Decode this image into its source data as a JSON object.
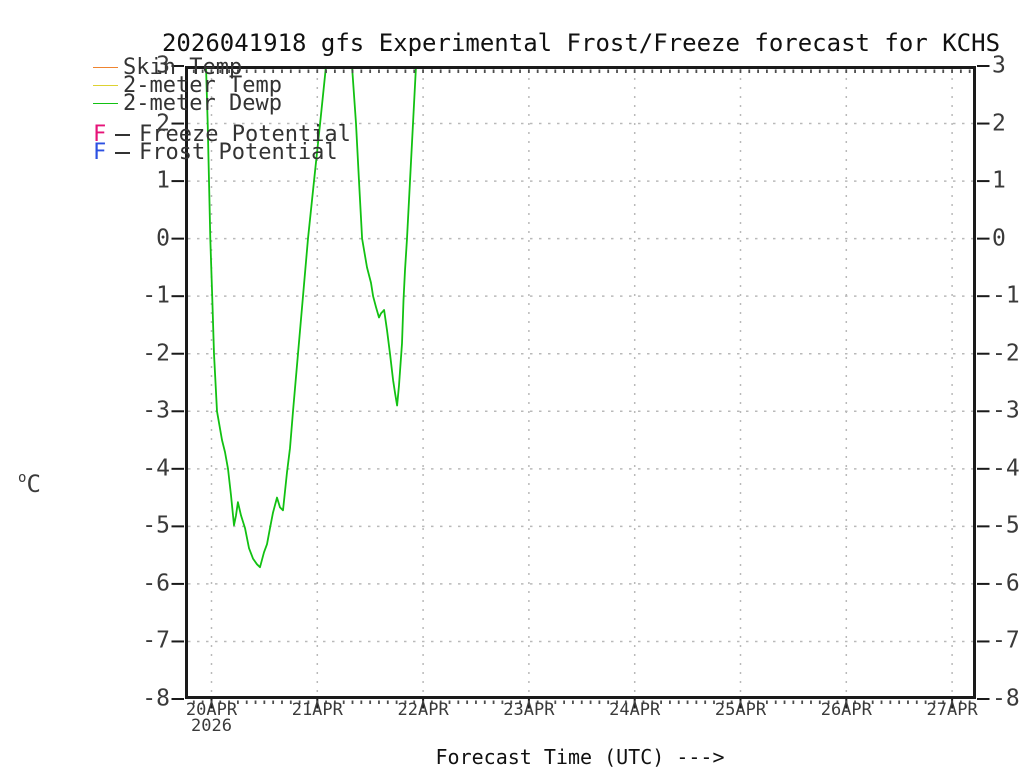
{
  "title": "2026041918 gfs Experimental Frost/Freeze forecast for KCHS",
  "colors": {
    "skin_temp": "#ef8430",
    "two_meter_temp": "#ddd231",
    "two_meter_dewp": "#12c112",
    "freeze_potential": "#e61378",
    "frost_potential": "#2c50e2",
    "grid": "#b9b9b9",
    "axis": "#1a1a1a",
    "text": "#333333"
  },
  "legend": {
    "entries": [
      {
        "kind": "line",
        "color": "#ef8430",
        "label": "Skin Temp"
      },
      {
        "kind": "line",
        "color": "#ddd231",
        "label": "2-meter Temp"
      },
      {
        "kind": "line",
        "color": "#12c112",
        "label": "2-meter Dewp"
      },
      {
        "kind": "letter",
        "symbol": "F",
        "color": "#e61378",
        "label": "Freeze Potential"
      },
      {
        "kind": "letter",
        "symbol": "F",
        "color": "#2c50e2",
        "label": "Frost Potential"
      }
    ]
  },
  "axes": {
    "x": {
      "label": "Forecast Time (UTC) --->",
      "ticks": [
        {
          "label": "20APR",
          "day": 20,
          "year": "2026"
        },
        {
          "label": "21APR",
          "day": 21
        },
        {
          "label": "22APR",
          "day": 22
        },
        {
          "label": "23APR",
          "day": 23
        },
        {
          "label": "24APR",
          "day": 24
        },
        {
          "label": "25APR",
          "day": 25
        },
        {
          "label": "26APR",
          "day": 26
        },
        {
          "label": "27APR",
          "day": 27
        }
      ]
    },
    "y": {
      "unit_sup": "o",
      "unit_main": "C",
      "ticks": [
        3,
        2,
        1,
        0,
        -1,
        -2,
        -3,
        -4,
        -5,
        -6,
        -7,
        -8
      ]
    }
  },
  "chart_data": {
    "type": "line",
    "title": "2026041918 gfs Experimental Frost/Freeze forecast for KCHS",
    "xlabel": "Forecast Time (UTC) --->",
    "ylabel": "oC",
    "ylim": [
      -8,
      3
    ],
    "xlim_april_days": [
      19.75,
      27.23
    ],
    "x_tick_labels": [
      "20APR",
      "21APR",
      "22APR",
      "23APR",
      "24APR",
      "25APR",
      "26APR",
      "27APR"
    ],
    "x_year": "2026",
    "grid": true,
    "legend_position": "top-left",
    "series": [
      {
        "name": "Skin Temp",
        "color": "#ef8430",
        "visible_in_plot": false,
        "segments_day_value": []
      },
      {
        "name": "2-meter Temp",
        "color": "#ddd231",
        "visible_in_plot": false,
        "segments_day_value": []
      },
      {
        "name": "2-meter Dewp",
        "color": "#12c112",
        "visible_in_plot": true,
        "unit": "degC",
        "segments_day_value": [
          [
            [
              19.948,
              3.0
            ],
            [
              19.964,
              2.0
            ],
            [
              19.976,
              1.0
            ],
            [
              19.989,
              0.0
            ],
            [
              20.008,
              -1.05
            ],
            [
              20.024,
              -2.0
            ],
            [
              20.052,
              -3.0
            ],
            [
              20.099,
              -3.5
            ],
            [
              20.128,
              -3.71
            ],
            [
              20.156,
              -4.0
            ],
            [
              20.184,
              -4.46
            ],
            [
              20.213,
              -4.98
            ],
            [
              20.232,
              -4.81
            ],
            [
              20.25,
              -4.58
            ],
            [
              20.279,
              -4.81
            ],
            [
              20.317,
              -5.03
            ],
            [
              20.354,
              -5.38
            ],
            [
              20.392,
              -5.56
            ],
            [
              20.43,
              -5.66
            ],
            [
              20.458,
              -5.71
            ],
            [
              20.496,
              -5.45
            ],
            [
              20.525,
              -5.31
            ],
            [
              20.553,
              -5.03
            ],
            [
              20.581,
              -4.76
            ],
            [
              20.619,
              -4.5
            ],
            [
              20.647,
              -4.67
            ],
            [
              20.676,
              -4.72
            ],
            [
              20.714,
              -4.06
            ],
            [
              20.742,
              -3.64
            ],
            [
              20.77,
              -3.0
            ],
            [
              20.818,
              -2.0
            ],
            [
              20.865,
              -1.0
            ],
            [
              20.912,
              0.0
            ],
            [
              20.969,
              1.0
            ],
            [
              21.026,
              2.0
            ],
            [
              21.082,
              3.0
            ]
          ],
          [
            [
              21.328,
              3.0
            ],
            [
              21.366,
              2.0
            ],
            [
              21.394,
              1.0
            ],
            [
              21.423,
              0.0
            ],
            [
              21.47,
              -0.5
            ],
            [
              21.508,
              -0.77
            ],
            [
              21.527,
              -1.0
            ],
            [
              21.555,
              -1.19
            ],
            [
              21.583,
              -1.37
            ],
            [
              21.602,
              -1.3
            ],
            [
              21.631,
              -1.24
            ],
            [
              21.659,
              -1.59
            ],
            [
              21.687,
              -2.0
            ],
            [
              21.716,
              -2.46
            ],
            [
              21.735,
              -2.69
            ],
            [
              21.754,
              -2.9
            ],
            [
              21.772,
              -2.55
            ],
            [
              21.801,
              -1.82
            ],
            [
              21.815,
              -1.07
            ],
            [
              21.829,
              -0.55
            ],
            [
              21.848,
              0.0
            ],
            [
              21.876,
              1.0
            ],
            [
              21.905,
              2.0
            ],
            [
              21.933,
              3.0
            ]
          ]
        ]
      }
    ],
    "frost_freeze_markers": []
  }
}
